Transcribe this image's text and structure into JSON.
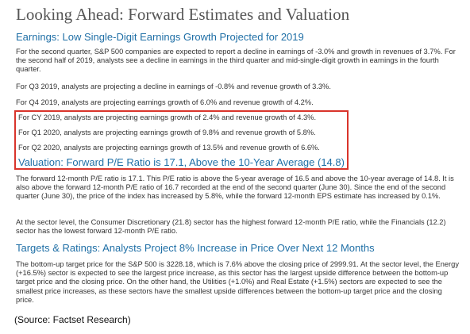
{
  "title": "Looking Ahead: Forward Estimates and Valuation",
  "earnings": {
    "heading": "Earnings: Low Single-Digit Earnings Growth Projected for 2019",
    "para": "For the second quarter, S&P 500 companies are expected to report a decline in earnings of -3.0% and growth in revenues of 3.7%. For the second half of 2019, analysts see a decline in earnings in the third quarter and mid-single-digit growth in earnings in the fourth quarter.",
    "q3": "For Q3 2019, analysts are projecting a decline in earnings of -0.8% and revenue growth of 3.3%.",
    "q4": "For Q4 2019, analysts are projecting earnings growth of 6.0% and revenue growth of 4.2%.",
    "cy2019": "For CY 2019, analysts are projecting earnings growth of 2.4% and revenue growth of 4.3%.",
    "q1_2020": "For Q1 2020, analysts are projecting earnings growth of 9.8% and revenue growth of 5.8%.",
    "q2_2020": "For Q2 2020, analysts are projecting earnings growth of 13.5% and revenue growth of 6.6%."
  },
  "valuation": {
    "heading": "Valuation: Forward P/E Ratio is 17.1, Above the 10-Year Average (14.8)",
    "para1": "The forward 12-month P/E ratio is 17.1. This P/E ratio is above the 5-year average of 16.5 and above the 10-year average of 14.8. It is also above the forward 12-month P/E ratio of 16.7 recorded at the end of the second quarter (June 30). Since the end of the second quarter (June 30), the price of the index has increased by 5.8%, while the forward 12-month EPS estimate has increased by 0.1%.",
    "para2": "At the sector level, the Consumer Discretionary (21.8) sector has the highest forward 12-month P/E ratio, while the Financials (12.2) sector has the lowest forward 12-month P/E ratio."
  },
  "targets": {
    "heading": "Targets & Ratings: Analysts Project 8% Increase in Price Over Next 12 Months",
    "para": "The bottom-up target price for the S&P 500 is 3228.18, which is 7.6% above the closing price of 2999.91. At the sector level, the Energy (+16.5%) sector is expected to see the largest price increase, as this sector has the largest upside difference between the bottom-up target price and the closing price. On the other hand, the Utilities (+1.0%) and Real Estate (+1.5%) sectors are expected to see the smallest price increases, as these sectors have the smallest upside differences between the bottom-up target price and the closing price."
  },
  "source": "(Source: Factset Research)",
  "colors": {
    "heading": "#1f6fa6",
    "highlight_border": "#d9342b",
    "text": "#333333"
  }
}
